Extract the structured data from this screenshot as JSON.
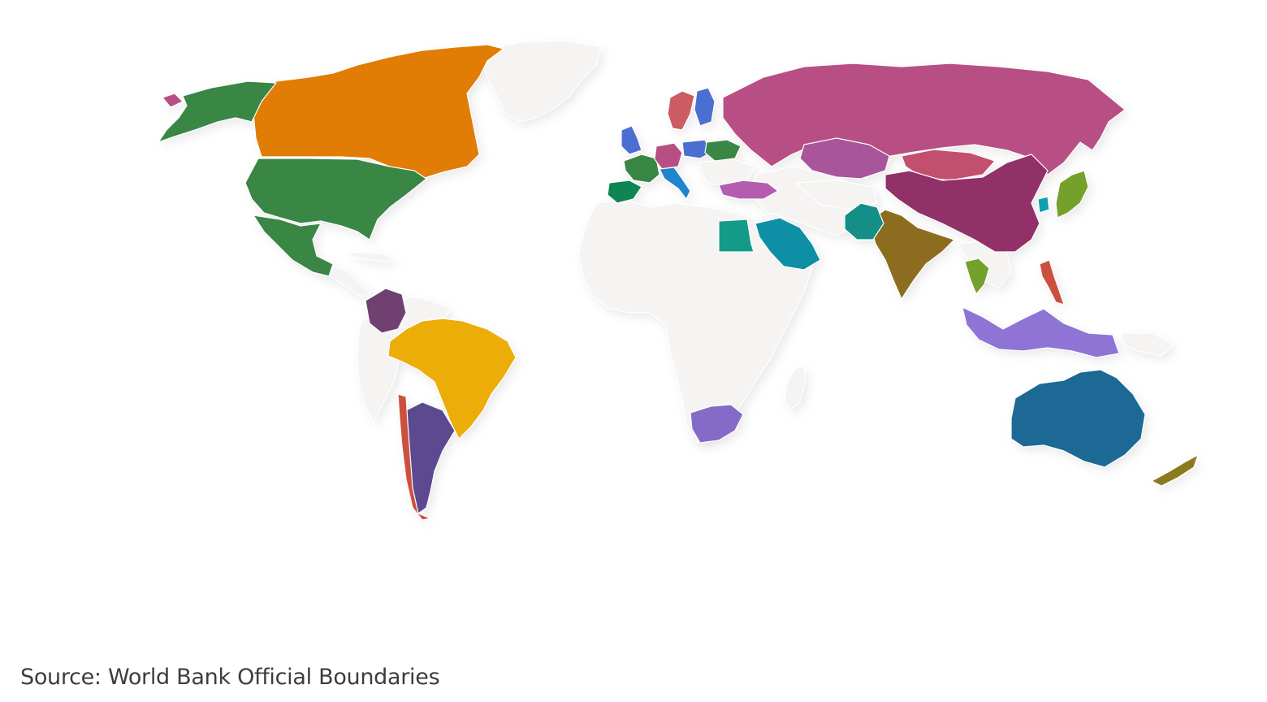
{
  "source_note": "Source: World Bank Official Boundaries",
  "map": {
    "highlighted_colors": {
      "united-states": "#3a8645",
      "canada": "#e17c05",
      "alaska": "#3a8645",
      "mexico": "#3a8645",
      "greenland": "#f6f4f3",
      "brazil": "#edad08",
      "argentina": "#5c4a91",
      "chile": "#cc503e",
      "colombia": "#6f4070",
      "russia": "#b84f84",
      "china": "#923068",
      "mongolia": "#c14f6d",
      "kazakhstan": "#a8559a",
      "india": "#8c6d1f",
      "australia": "#1d6996",
      "new-zealand": "#8c7a1f",
      "japan": "#73a12b",
      "south-africa": "#866ac8",
      "saudi-arabia": "#0f8fa6",
      "egypt": "#139a89",
      "indonesia": "#8f74d6",
      "philippines": "#cc503e",
      "thailand": "#73a12b",
      "france": "#3a8645",
      "spain": "#0f8554",
      "uk": "#4b6fd1",
      "germany": "#b84f84",
      "italy": "#1f85cc",
      "poland": "#4b6fd1",
      "ukraine": "#3a8645",
      "turkey": "#b45db0",
      "sweden": "#cc5b64",
      "finland": "#4b6fd1",
      "pakistan": "#138f87",
      "south-korea": "#0f9fb0",
      "iceland": "#b84f84"
    },
    "default_land_color": "#f6f4f3",
    "border_color": "#ffffff"
  }
}
